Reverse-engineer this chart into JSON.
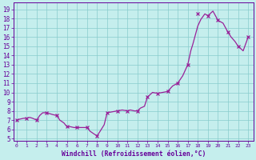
{
  "x_line": [
    0,
    0.3,
    0.7,
    1,
    1.3,
    1.6,
    2,
    2.3,
    2.6,
    3,
    3.3,
    3.6,
    4,
    4.3,
    4.7,
    5,
    5.3,
    5.7,
    6,
    6.3,
    6.7,
    7,
    7.3,
    7.7,
    8,
    8.3,
    8.7,
    9,
    9.5,
    10,
    10.5,
    11,
    11.3,
    11.7,
    12,
    12.3,
    12.7,
    13,
    13.5,
    14,
    14.5,
    15,
    15.5,
    16,
    16.5,
    17,
    17.3,
    17.5,
    17.7,
    18,
    18.3,
    18.7,
    19,
    19.5,
    20,
    20.5,
    21,
    21.3,
    21.7,
    22,
    22.5,
    23
  ],
  "y_line": [
    7.0,
    7.1,
    7.2,
    7.2,
    7.3,
    7.2,
    7.0,
    7.5,
    7.8,
    7.8,
    7.7,
    7.6,
    7.5,
    7.0,
    6.7,
    6.3,
    6.3,
    6.2,
    6.2,
    6.2,
    6.2,
    6.2,
    5.8,
    5.5,
    5.3,
    5.8,
    6.5,
    7.8,
    7.9,
    8.0,
    8.1,
    8.0,
    8.1,
    8.0,
    8.0,
    8.3,
    8.5,
    9.5,
    10.0,
    9.9,
    10.0,
    10.1,
    10.7,
    11.0,
    11.8,
    13.0,
    14.5,
    15.2,
    16.0,
    17.2,
    17.9,
    18.5,
    18.3,
    18.8,
    17.8,
    17.5,
    16.5,
    16.0,
    15.5,
    15.0,
    14.5,
    16.0
  ],
  "x_markers": [
    0,
    1,
    2,
    3,
    4,
    5,
    6,
    7,
    8,
    9,
    10,
    11,
    12,
    13,
    14,
    15,
    16,
    17,
    18,
    19,
    20,
    21,
    22,
    23
  ],
  "y_markers": [
    7.0,
    7.2,
    7.0,
    7.8,
    7.5,
    6.3,
    6.2,
    6.2,
    5.3,
    7.8,
    8.0,
    8.0,
    8.0,
    9.5,
    9.9,
    10.1,
    11.0,
    13.0,
    18.5,
    18.3,
    17.8,
    16.5,
    15.0,
    16.0
  ],
  "line_color": "#992299",
  "marker_color": "#992299",
  "bg_color": "#c5eeed",
  "grid_color": "#88cccc",
  "xlabel": "Windchill (Refroidissement éolien,°C)",
  "xlabel_color": "#660099",
  "tick_color": "#660099",
  "yticks": [
    5,
    6,
    7,
    8,
    9,
    10,
    11,
    12,
    13,
    14,
    15,
    16,
    17,
    18,
    19
  ],
  "xticks": [
    0,
    1,
    2,
    3,
    4,
    5,
    6,
    7,
    8,
    9,
    10,
    11,
    12,
    13,
    14,
    15,
    16,
    17,
    18,
    19,
    20,
    21,
    22,
    23
  ],
  "xlim": [
    -0.3,
    23.5
  ],
  "ylim": [
    4.8,
    19.7
  ]
}
